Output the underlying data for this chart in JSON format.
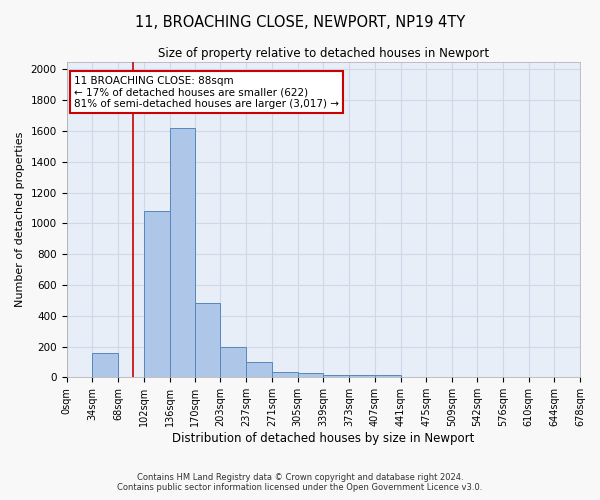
{
  "title1": "11, BROACHING CLOSE, NEWPORT, NP19 4TY",
  "title2": "Size of property relative to detached houses in Newport",
  "xlabel": "Distribution of detached houses by size in Newport",
  "ylabel": "Number of detached properties",
  "bin_edges": [
    0,
    34,
    68,
    102,
    136,
    170,
    203,
    237,
    271,
    305,
    339,
    373,
    407,
    441,
    475,
    509,
    542,
    576,
    610,
    644,
    678
  ],
  "bar_heights": [
    0,
    160,
    5,
    1080,
    1620,
    480,
    200,
    100,
    35,
    25,
    15,
    15,
    15,
    5,
    5,
    5,
    5,
    5,
    0,
    0
  ],
  "bar_color": "#aec6e8",
  "bar_edge_color": "#5588bb",
  "background_color": "#e8eef8",
  "grid_color": "#d0d8e8",
  "property_size": 88,
  "red_line_color": "#cc0000",
  "annotation_text": "11 BROACHING CLOSE: 88sqm\n← 17% of detached houses are smaller (622)\n81% of semi-detached houses are larger (3,017) →",
  "annotation_box_color": "#ffffff",
  "annotation_box_edge": "#cc0000",
  "footnote1": "Contains HM Land Registry data © Crown copyright and database right 2024.",
  "footnote2": "Contains public sector information licensed under the Open Government Licence v3.0.",
  "ylim": [
    0,
    2050
  ],
  "yticks": [
    0,
    200,
    400,
    600,
    800,
    1000,
    1200,
    1400,
    1600,
    1800,
    2000
  ],
  "tick_labels": [
    "0sqm",
    "34sqm",
    "68sqm",
    "102sqm",
    "136sqm",
    "170sqm",
    "203sqm",
    "237sqm",
    "271sqm",
    "305sqm",
    "339sqm",
    "373sqm",
    "407sqm",
    "441sqm",
    "475sqm",
    "509sqm",
    "542sqm",
    "576sqm",
    "610sqm",
    "644sqm",
    "678sqm"
  ],
  "fig_width": 6.0,
  "fig_height": 5.0,
  "dpi": 100
}
